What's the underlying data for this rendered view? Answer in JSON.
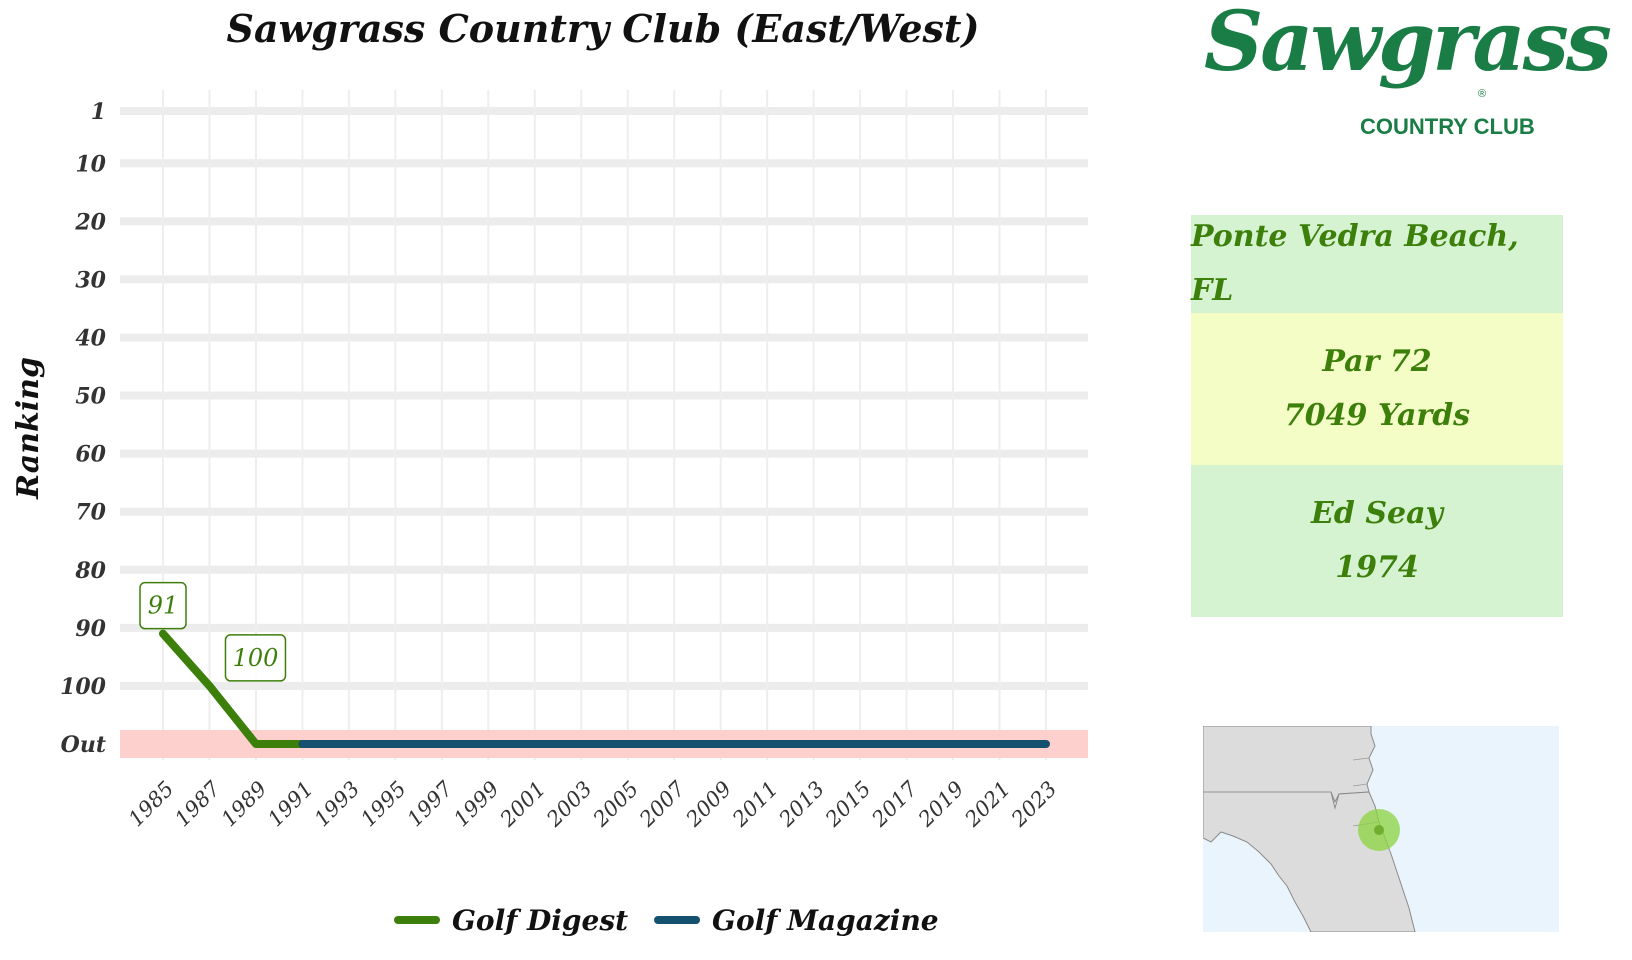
{
  "colors": {
    "golf_digest": "#3d7f0b",
    "golf_magazine": "#15506e",
    "out_band": "#fdcfcd",
    "grid": "#ececec",
    "logo_green": "#1a7d46",
    "box_green": "#d5f3d1",
    "box_yellow": "#f5fdc6",
    "map_land": "#dcdcdc",
    "map_water": "#eaf4fc",
    "map_marker": "#8bd43f"
  },
  "logo": {
    "script_text": "Sawgrass",
    "sub_text": "COUNTRY CLUB",
    "registered": "®"
  },
  "info": {
    "location": "Ponte Vedra Beach, FL",
    "par": "Par 72",
    "yards": "7049 Yards",
    "architect": "Ed Seay",
    "year": "1974"
  },
  "map": {
    "region": "Florida / Georgia",
    "marker": "course-location"
  },
  "chart_data": {
    "type": "line",
    "title": "Sawgrass Country Club (East/West)",
    "xlabel": "",
    "ylabel": "Ranking",
    "y_reversed": true,
    "y_ticks": [
      "1",
      "10",
      "20",
      "30",
      "40",
      "50",
      "60",
      "70",
      "80",
      "90",
      "100",
      "Out"
    ],
    "y_tick_values": [
      1,
      10,
      20,
      30,
      40,
      50,
      60,
      70,
      80,
      90,
      100,
      110
    ],
    "out_value": 110,
    "x_ticks": [
      "1985",
      "1987",
      "1989",
      "1991",
      "1993",
      "1995",
      "1997",
      "1999",
      "2001",
      "2003",
      "2005",
      "2007",
      "2009",
      "2011",
      "2013",
      "2015",
      "2017",
      "2019",
      "2021",
      "2023"
    ],
    "xlim": [
      1985,
      2023
    ],
    "ylim": [
      1,
      110
    ],
    "grid": true,
    "legend_position": "bottom",
    "series": [
      {
        "name": "Golf Digest",
        "color_key": "golf_digest",
        "points": [
          [
            1985,
            91
          ],
          [
            1987,
            100
          ],
          [
            1989,
            110
          ],
          [
            1991,
            110
          ]
        ]
      },
      {
        "name": "Golf Magazine",
        "color_key": "golf_magazine",
        "points": [
          [
            1991,
            110
          ],
          [
            2023,
            110
          ]
        ]
      }
    ],
    "data_labels": [
      {
        "x": 1985,
        "y": 91,
        "text": "91",
        "series": "Golf Digest"
      },
      {
        "x": 1987,
        "y": 100,
        "text": "100",
        "series": "Golf Digest"
      }
    ]
  }
}
